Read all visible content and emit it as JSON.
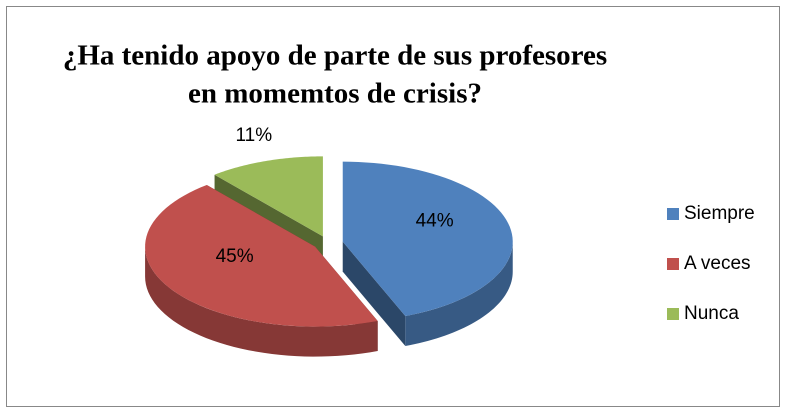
{
  "chart_data": {
    "type": "pie3d",
    "title": [
      "¿Ha tenido apoyo de parte de sus profesores",
      "en momemtos de crisis?"
    ],
    "categories": [
      "Siempre",
      "A veces",
      "Nunca"
    ],
    "values": [
      44,
      45,
      11
    ],
    "value_labels": [
      "44%",
      "45%",
      "11%"
    ],
    "colors": [
      "#4f81bd",
      "#c0504d",
      "#9bbb59"
    ],
    "legend": "right"
  }
}
